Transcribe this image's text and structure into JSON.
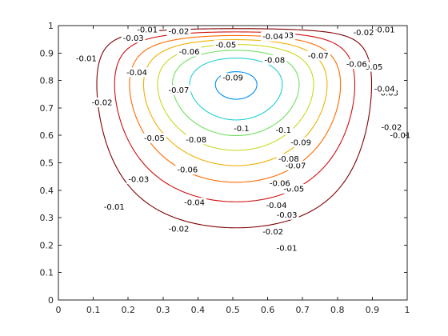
{
  "chart_data": {
    "type": "contour",
    "title": "",
    "xlabel": "",
    "ylabel": "",
    "xlim": [
      0,
      1
    ],
    "ylim": [
      0,
      1
    ],
    "xticks": [
      "0",
      "0.1",
      "0.2",
      "0.3",
      "0.4",
      "0.5",
      "0.6",
      "0.7",
      "0.8",
      "0.9",
      "1"
    ],
    "yticks": [
      "0",
      "0.1",
      "0.2",
      "0.3",
      "0.4",
      "0.5",
      "0.6",
      "0.7",
      "0.8",
      "0.9",
      "1"
    ],
    "grid": false,
    "box": true,
    "vortex_center": [
      0.58,
      0.69
    ],
    "levels": [
      {
        "value": -0.01,
        "color": "#800000"
      },
      {
        "value": -0.02,
        "color": "#d01010"
      },
      {
        "value": -0.03,
        "color": "#ff6a00"
      },
      {
        "value": -0.04,
        "color": "#f0b000"
      },
      {
        "value": -0.05,
        "color": "#c8d820"
      },
      {
        "value": -0.06,
        "color": "#70e060"
      },
      {
        "value": -0.07,
        "color": "#20d0d0"
      },
      {
        "value": -0.08,
        "color": "#0090f0"
      },
      {
        "value": -0.09,
        "color": "#0030e0"
      },
      {
        "value": -0.1,
        "color": "#00008c"
      }
    ],
    "contour_labels": [
      {
        "text": "-0.01",
        "x": 0.08,
        "y": 0.88
      },
      {
        "text": "-0.01",
        "x": 0.255,
        "y": 0.985
      },
      {
        "text": "-0.01",
        "x": 0.935,
        "y": 0.985
      },
      {
        "text": "-0.01",
        "x": 0.98,
        "y": 0.6
      },
      {
        "text": "-0.01",
        "x": 0.16,
        "y": 0.34
      },
      {
        "text": "-0.01",
        "x": 0.655,
        "y": 0.19
      },
      {
        "text": "-0.02",
        "x": 0.125,
        "y": 0.72
      },
      {
        "text": "-0.02",
        "x": 0.345,
        "y": 0.98
      },
      {
        "text": "-0.02",
        "x": 0.875,
        "y": 0.975
      },
      {
        "text": "-0.02",
        "x": 0.955,
        "y": 0.63
      },
      {
        "text": "-0.02",
        "x": 0.345,
        "y": 0.26
      },
      {
        "text": "-0.02",
        "x": 0.615,
        "y": 0.25
      },
      {
        "text": "-0.03",
        "x": 0.215,
        "y": 0.955
      },
      {
        "text": "-0.03",
        "x": 0.645,
        "y": 0.965
      },
      {
        "text": "-0.03",
        "x": 0.23,
        "y": 0.44
      },
      {
        "text": "-0.03",
        "x": 0.655,
        "y": 0.31
      },
      {
        "text": "-0.03",
        "x": 0.945,
        "y": 0.755
      },
      {
        "text": "-0.04",
        "x": 0.225,
        "y": 0.83
      },
      {
        "text": "-0.04",
        "x": 0.615,
        "y": 0.96
      },
      {
        "text": "-0.04",
        "x": 0.39,
        "y": 0.355
      },
      {
        "text": "-0.04",
        "x": 0.625,
        "y": 0.345
      },
      {
        "text": "-0.04",
        "x": 0.935,
        "y": 0.77
      },
      {
        "text": "-0.05",
        "x": 0.48,
        "y": 0.93
      },
      {
        "text": "-0.05",
        "x": 0.275,
        "y": 0.59
      },
      {
        "text": "-0.05",
        "x": 0.675,
        "y": 0.405
      },
      {
        "text": "-0.05",
        "x": 0.9,
        "y": 0.85
      },
      {
        "text": "-0.06",
        "x": 0.375,
        "y": 0.905
      },
      {
        "text": "-0.06",
        "x": 0.37,
        "y": 0.475
      },
      {
        "text": "-0.06",
        "x": 0.635,
        "y": 0.425
      },
      {
        "text": "-0.06",
        "x": 0.855,
        "y": 0.86
      },
      {
        "text": "-0.07",
        "x": 0.345,
        "y": 0.765
      },
      {
        "text": "-0.07",
        "x": 0.68,
        "y": 0.49
      },
      {
        "text": "-0.07",
        "x": 0.745,
        "y": 0.89
      },
      {
        "text": "-0.08",
        "x": 0.395,
        "y": 0.585
      },
      {
        "text": "-0.08",
        "x": 0.62,
        "y": 0.875
      },
      {
        "text": "-0.08",
        "x": 0.66,
        "y": 0.515
      },
      {
        "text": "-0.09",
        "x": 0.5,
        "y": 0.81
      },
      {
        "text": "-0.09",
        "x": 0.695,
        "y": 0.575
      },
      {
        "text": "-0.1",
        "x": 0.525,
        "y": 0.625
      },
      {
        "text": "-0.1",
        "x": 0.645,
        "y": 0.62
      }
    ]
  }
}
